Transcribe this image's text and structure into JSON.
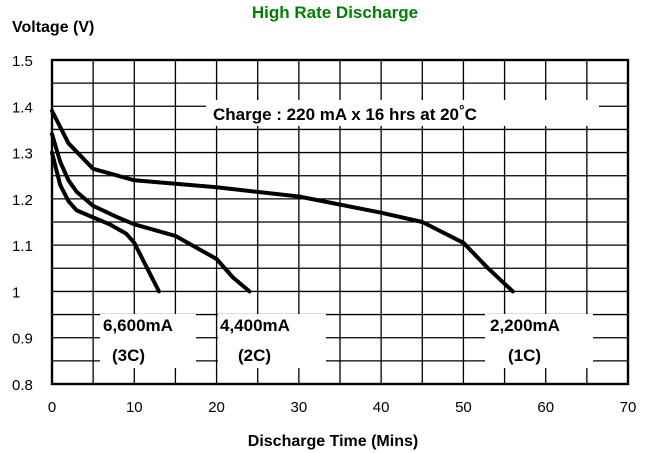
{
  "chart_data": {
    "type": "line",
    "title": "High Rate Discharge",
    "title_color": "#008000",
    "xlabel": "Discharge Time (Mins)",
    "ylabel": "Voltage (V)",
    "xlim": [
      0,
      70
    ],
    "ylim": [
      0.8,
      1.5
    ],
    "x_ticks": [
      "0",
      "10",
      "20",
      "30",
      "40",
      "50",
      "60",
      "70"
    ],
    "y_ticks": [
      "0.8",
      "0.9",
      "1",
      "1.1",
      "1.2",
      "1.3",
      "1.4",
      "1.5"
    ],
    "grid": true,
    "grid_minor_x_step": 5,
    "grid_minor_y_step": 0.05,
    "annotation": "Charge : 220 mA x 16 hrs at 20",
    "annotation_unit": "C",
    "series": [
      {
        "name": "2,200mA",
        "sub": "(1C)",
        "x": [
          0,
          2,
          5,
          10,
          20,
          30,
          40,
          45,
          50,
          53,
          56
        ],
        "y": [
          1.39,
          1.32,
          1.265,
          1.24,
          1.225,
          1.205,
          1.17,
          1.15,
          1.105,
          1.05,
          1.0
        ]
      },
      {
        "name": "4,400mA",
        "sub": "(2C)",
        "x": [
          0,
          1,
          2,
          3,
          5,
          8,
          10,
          15,
          20,
          22,
          24
        ],
        "y": [
          1.34,
          1.28,
          1.24,
          1.215,
          1.185,
          1.16,
          1.145,
          1.12,
          1.07,
          1.03,
          1.0
        ]
      },
      {
        "name": "6,600mA",
        "sub": "(3C)",
        "x": [
          0,
          1,
          2,
          3,
          5,
          7,
          9,
          10,
          11,
          12,
          13
        ],
        "y": [
          1.3,
          1.23,
          1.195,
          1.175,
          1.16,
          1.145,
          1.125,
          1.105,
          1.07,
          1.035,
          1.0
        ]
      }
    ]
  }
}
